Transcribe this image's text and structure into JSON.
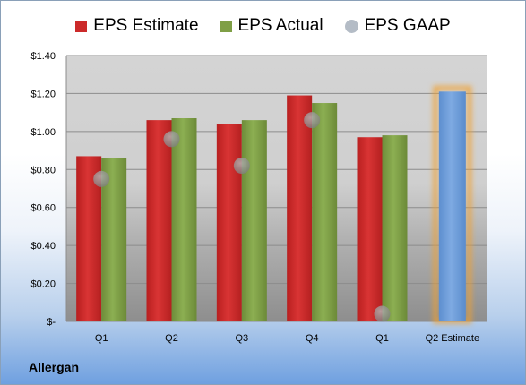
{
  "chart_data": {
    "type": "bar",
    "title": "",
    "categories": [
      "Q1",
      "Q2",
      "Q3",
      "Q4",
      "Q1",
      "Q2 Estimate"
    ],
    "series": [
      {
        "name": "EPS Estimate",
        "type": "bar",
        "color": "#cc2a2a",
        "values": [
          0.87,
          1.06,
          1.04,
          1.19,
          0.97,
          null
        ]
      },
      {
        "name": "EPS Actual",
        "type": "bar",
        "color": "#7f9f46",
        "values": [
          0.86,
          1.07,
          1.06,
          1.15,
          0.98,
          null
        ]
      },
      {
        "name": "EPS GAAP",
        "type": "scatter",
        "color": "#9aa4b0",
        "values": [
          0.75,
          0.96,
          0.82,
          1.06,
          0.04,
          null
        ]
      }
    ],
    "estimate_bar": {
      "category": "Q2 Estimate",
      "value": 1.21,
      "color": "#6f9fd8",
      "highlight": "#f0a030"
    },
    "ylim": [
      0,
      1.4
    ],
    "yticks": [
      {
        "value": 0,
        "label": "$-"
      },
      {
        "value": 0.2,
        "label": "$0.20"
      },
      {
        "value": 0.4,
        "label": "$0.40"
      },
      {
        "value": 0.6,
        "label": "$0.60"
      },
      {
        "value": 0.8,
        "label": "$0.80"
      },
      {
        "value": 1.0,
        "label": "$1.00"
      },
      {
        "value": 1.2,
        "label": "$1.20"
      },
      {
        "value": 1.4,
        "label": "$1.40"
      }
    ],
    "grid": true,
    "legend": "top"
  },
  "company": "Allergan"
}
